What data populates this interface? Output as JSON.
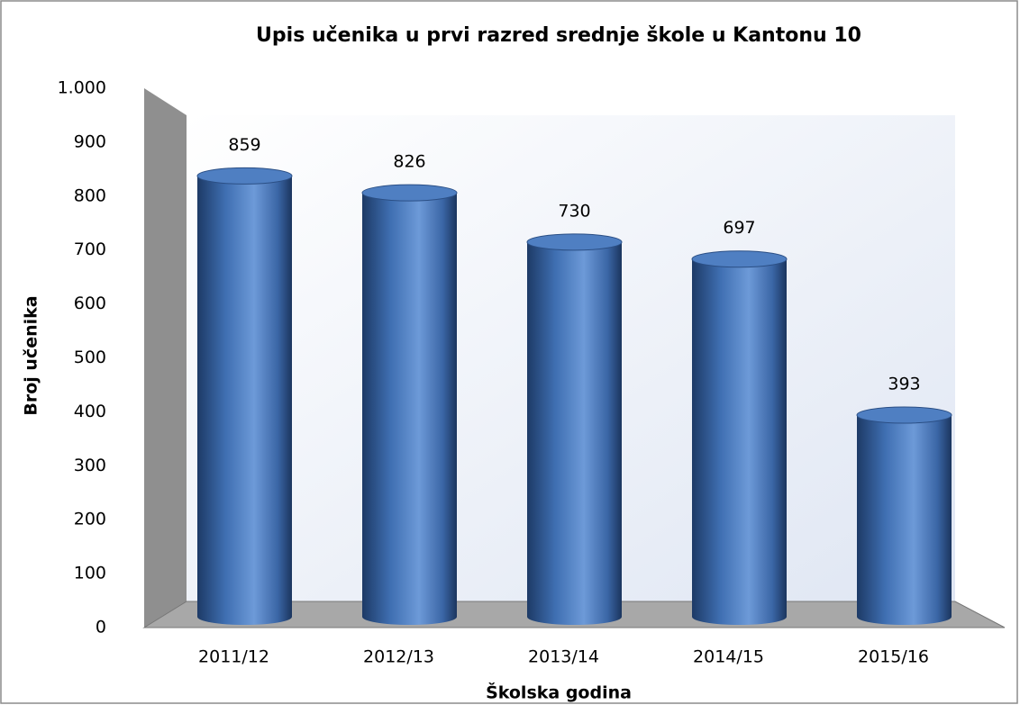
{
  "chart_data": {
    "type": "bar",
    "title": "Upis učenika u prvi razred srednje škole u Kantonu 10",
    "x_label": "Školska godina",
    "y_label": "Broj učenika",
    "categories": [
      "2011/12",
      "2012/13",
      "2013/14",
      "2014/15",
      "2015/16"
    ],
    "values": [
      859,
      826,
      730,
      697,
      393
    ],
    "color": "#4f81bd",
    "ylim": [
      0,
      1000
    ],
    "yticks": [
      0,
      100,
      200,
      300,
      400,
      500,
      600,
      700,
      800,
      900,
      {
        "value": 1000,
        "label": "1.000"
      }
    ],
    "grid": false
  }
}
